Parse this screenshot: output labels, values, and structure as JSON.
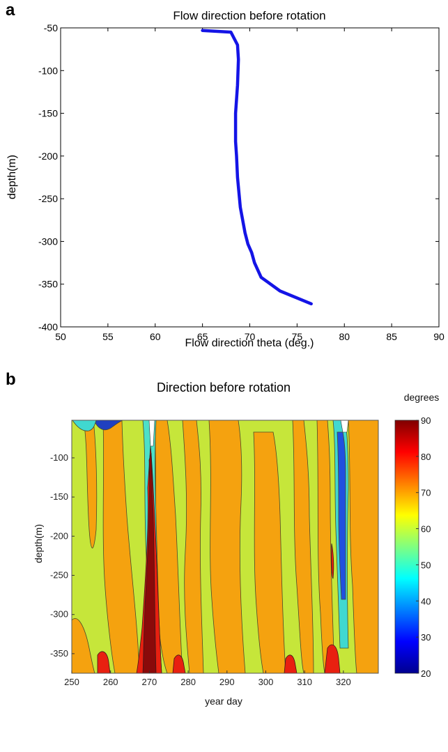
{
  "chart_data": [
    {
      "panel": "a",
      "type": "line",
      "title": "Flow direction before rotation",
      "xlabel": "Flow direction theta (deg.)",
      "ylabel": "depth(m)",
      "xlim": [
        50,
        90
      ],
      "ylim": [
        -400,
        -50
      ],
      "xticks": [
        50,
        55,
        60,
        65,
        70,
        75,
        80,
        85,
        90
      ],
      "yticks": [
        -50,
        -100,
        -150,
        -200,
        -250,
        -300,
        -350,
        -400
      ],
      "grid": false,
      "series": [
        {
          "color": "#1414e6",
          "x": [
            65.0,
            68.0,
            68.7,
            68.8,
            68.7,
            68.5,
            68.5,
            68.6,
            68.7,
            69.0,
            69.5,
            69.8,
            70.2,
            70.5,
            71.2,
            73.2,
            76.5
          ],
          "y": [
            -53,
            -55,
            -70,
            -87,
            -117,
            -150,
            -183,
            -200,
            -225,
            -260,
            -290,
            -303,
            -313,
            -325,
            -342,
            -358,
            -373
          ]
        }
      ]
    },
    {
      "panel": "b",
      "type": "heatmap",
      "title": "Direction before rotation",
      "xlabel": "year day",
      "ylabel": "depth(m)",
      "xlim": [
        250,
        329
      ],
      "ylim": [
        -375,
        -52
      ],
      "xticks": [
        250,
        260,
        270,
        280,
        290,
        300,
        310,
        320
      ],
      "yticks": [
        -100,
        -150,
        -200,
        -250,
        -300,
        -350
      ],
      "colorbar": {
        "label": "degrees",
        "range": [
          20,
          90
        ],
        "ticks": [
          90,
          80,
          70,
          60,
          50,
          40,
          30,
          20
        ]
      }
    }
  ]
}
